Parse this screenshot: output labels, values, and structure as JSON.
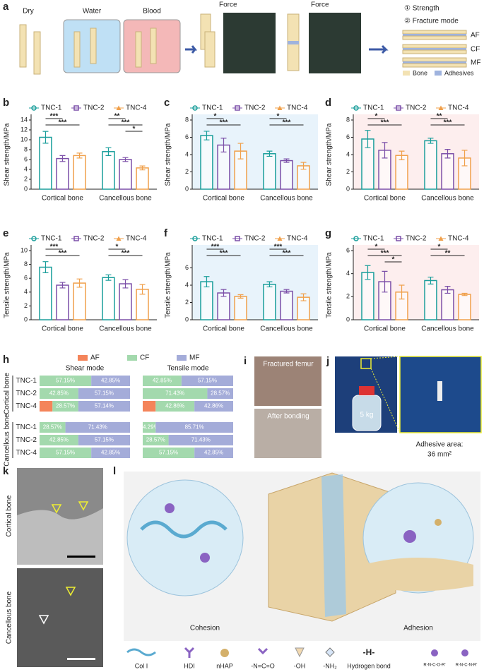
{
  "chart_data": [
    {
      "type": "bar",
      "label": "b",
      "ylabel": "Shear strength/MPa",
      "categories": [
        "Cortical bone",
        "Cancellous bone"
      ],
      "series": [
        {
          "name": "TNC-1",
          "color": "#1a9e9b",
          "values": [
            10.5,
            7.6
          ],
          "errors": [
            1.2,
            0.8
          ]
        },
        {
          "name": "TNC-2",
          "color": "#7b4fa8",
          "values": [
            6.2,
            6.0
          ],
          "errors": [
            0.6,
            0.4
          ]
        },
        {
          "name": "TNC-4",
          "color": "#f0a04b",
          "values": [
            6.8,
            4.3
          ],
          "errors": [
            0.5,
            0.4
          ]
        }
      ],
      "ylim": [
        0,
        14
      ],
      "yticks": [
        0,
        2,
        4,
        6,
        8,
        10,
        12,
        14
      ],
      "background": "#ffffff",
      "annotations": [
        [
          "***",
          "***"
        ],
        [
          "**",
          "***",
          "*"
        ]
      ]
    },
    {
      "type": "bar",
      "label": "c",
      "ylabel": "Shear strength/MPa",
      "categories": [
        "Cortical bone",
        "Cancellous bone"
      ],
      "series": [
        {
          "name": "TNC-1",
          "color": "#1a9e9b",
          "values": [
            6.2,
            4.1
          ],
          "errors": [
            0.5,
            0.3
          ]
        },
        {
          "name": "TNC-2",
          "color": "#7b4fa8",
          "values": [
            5.1,
            3.3
          ],
          "errors": [
            0.8,
            0.2
          ]
        },
        {
          "name": "TNC-4",
          "color": "#f0a04b",
          "values": [
            4.4,
            2.7
          ],
          "errors": [
            0.9,
            0.4
          ]
        }
      ],
      "ylim": [
        0,
        8
      ],
      "yticks": [
        0,
        2,
        4,
        6,
        8
      ],
      "background": "#e8f3fb",
      "annotations": [
        [
          "*",
          "***"
        ],
        [
          "*",
          "***"
        ]
      ]
    },
    {
      "type": "bar",
      "label": "d",
      "ylabel": "Shear strength/MPa",
      "categories": [
        "Cortical bone",
        "Cancellous bone"
      ],
      "series": [
        {
          "name": "TNC-1",
          "color": "#1a9e9b",
          "values": [
            5.8,
            5.6
          ],
          "errors": [
            1.0,
            0.3
          ]
        },
        {
          "name": "TNC-2",
          "color": "#7b4fa8",
          "values": [
            4.5,
            4.1
          ],
          "errors": [
            0.9,
            0.5
          ]
        },
        {
          "name": "TNC-4",
          "color": "#f0a04b",
          "values": [
            3.9,
            3.6
          ],
          "errors": [
            0.5,
            0.9
          ]
        }
      ],
      "ylim": [
        0,
        8
      ],
      "yticks": [
        0,
        2,
        4,
        6,
        8
      ],
      "background": "#fdeeee",
      "annotations": [
        [
          "*",
          "***"
        ],
        [
          "**",
          "***"
        ]
      ]
    },
    {
      "type": "bar",
      "label": "e",
      "ylabel": "Tensile strength/MPa",
      "categories": [
        "Cortical bone",
        "Cancellous bone"
      ],
      "series": [
        {
          "name": "TNC-1",
          "color": "#1a9e9b",
          "values": [
            7.6,
            6.1
          ],
          "errors": [
            0.8,
            0.4
          ]
        },
        {
          "name": "TNC-2",
          "color": "#7b4fa8",
          "values": [
            5.0,
            5.2
          ],
          "errors": [
            0.4,
            0.6
          ]
        },
        {
          "name": "TNC-4",
          "color": "#f0a04b",
          "values": [
            5.3,
            4.4
          ],
          "errors": [
            0.6,
            0.7
          ]
        }
      ],
      "ylim": [
        0,
        10
      ],
      "yticks": [
        0,
        2,
        4,
        6,
        8,
        10
      ],
      "background": "#ffffff",
      "annotations": [
        [
          "***",
          "***"
        ],
        [
          "*",
          "***"
        ]
      ]
    },
    {
      "type": "bar",
      "label": "f",
      "ylabel": "Tensile strength/MPa",
      "categories": [
        "Cortical bone",
        "Cancellous bone"
      ],
      "series": [
        {
          "name": "TNC-1",
          "color": "#1a9e9b",
          "values": [
            4.4,
            4.1
          ],
          "errors": [
            0.6,
            0.3
          ]
        },
        {
          "name": "TNC-2",
          "color": "#7b4fa8",
          "values": [
            3.1,
            3.3
          ],
          "errors": [
            0.4,
            0.2
          ]
        },
        {
          "name": "TNC-4",
          "color": "#f0a04b",
          "values": [
            2.7,
            2.6
          ],
          "errors": [
            0.2,
            0.4
          ]
        }
      ],
      "ylim": [
        0,
        8
      ],
      "yticks": [
        0,
        2,
        4,
        6
      ],
      "background": "#e8f3fb",
      "annotations": [
        [
          "***",
          "***"
        ],
        [
          "***",
          "***"
        ]
      ]
    },
    {
      "type": "bar",
      "label": "g",
      "ylabel": "Tensile strength/MPa",
      "categories": [
        "Cortical bone",
        "Cancellous bone"
      ],
      "series": [
        {
          "name": "TNC-1",
          "color": "#1a9e9b",
          "values": [
            4.1,
            3.4
          ],
          "errors": [
            0.6,
            0.3
          ]
        },
        {
          "name": "TNC-2",
          "color": "#7b4fa8",
          "values": [
            3.3,
            2.6
          ],
          "errors": [
            0.9,
            0.3
          ]
        },
        {
          "name": "TNC-4",
          "color": "#f0a04b",
          "values": [
            2.4,
            2.2
          ],
          "errors": [
            0.6,
            0.1
          ]
        }
      ],
      "ylim": [
        0,
        6
      ],
      "yticks": [
        0,
        2,
        4,
        6
      ],
      "background": "#fdeeee",
      "annotations": [
        [
          "*",
          "***",
          "*"
        ],
        [
          "*",
          "**"
        ]
      ]
    },
    {
      "type": "stacked_bar",
      "label": "h",
      "modes": [
        "Shear mode",
        "Tensile mode"
      ],
      "groups": [
        "Cortical bone",
        "Cancellous bone"
      ],
      "categories": [
        "TNC-1",
        "TNC-2",
        "TNC-4",
        "TNC-1",
        "TNC-2",
        "TNC-4"
      ],
      "series": [
        {
          "name": "AF",
          "color": "#f4845a",
          "values": [
            [
              0,
              0,
              14.29,
              0,
              0,
              0
            ],
            [
              0,
              0,
              14.28,
              0,
              0,
              0
            ]
          ]
        },
        {
          "name": "CF",
          "color": "#a3d9ad",
          "values": [
            [
              57.15,
              42.85,
              28.57,
              28.57,
              42.85,
              57.15
            ],
            [
              42.85,
              71.43,
              42.86,
              14.29,
              28.57,
              57.15
            ]
          ],
          "value_labels": [
            [
              "57.15%",
              "42.85%",
              "28.57%",
              "28.57%",
              "42.85%",
              "57.15%"
            ],
            [
              "42.85%",
              "71.43%",
              "42.86%",
              "14.29%",
              "28.57%",
              "57.15%"
            ]
          ]
        },
        {
          "name": "MF",
          "color": "#a4acd9",
          "values": [
            [
              42.85,
              57.15,
              57.14,
              71.43,
              57.15,
              42.85
            ],
            [
              57.15,
              28.57,
              42.86,
              85.71,
              71.43,
              42.85
            ]
          ],
          "value_labels": [
            [
              "42.85%",
              "57.15%",
              "57.14%",
              "71.43%",
              "57.15%",
              "42.85%"
            ],
            [
              "57.15%",
              "28.57%",
              "42.86%",
              "85.71%",
              "71.43%",
              "42.85%"
            ]
          ]
        }
      ]
    }
  ],
  "panels": {
    "a": {
      "label": "a",
      "conditions": [
        "Dry",
        "Water",
        "Blood"
      ],
      "force": [
        "Force",
        "Force"
      ],
      "steps": [
        "① Strength",
        "② Fracture mode"
      ],
      "modes": [
        "AF",
        "CF",
        "MF"
      ],
      "legend": [
        "Bone",
        "Adhesives"
      ]
    },
    "i": {
      "label": "i",
      "captions": [
        "Fractured femur",
        "After bonding"
      ]
    },
    "j": {
      "label": "j",
      "weight": "5 kg",
      "area_label": "Adhesive area:",
      "area_value": "36 mm²"
    },
    "k": {
      "label": "k",
      "rows": [
        "Cortical bone",
        "Cancellous bone"
      ]
    },
    "l": {
      "label": "l",
      "sides": [
        "Cohesion",
        "Adhesion"
      ],
      "legend": [
        "Col I",
        "HDI",
        "nHAP",
        "-N=C=O",
        "-OH",
        "-NH₂",
        "Hydrogen bond"
      ],
      "formulas": [
        "R-N-C-O-R'",
        "R-N-C-N-R'"
      ]
    }
  }
}
